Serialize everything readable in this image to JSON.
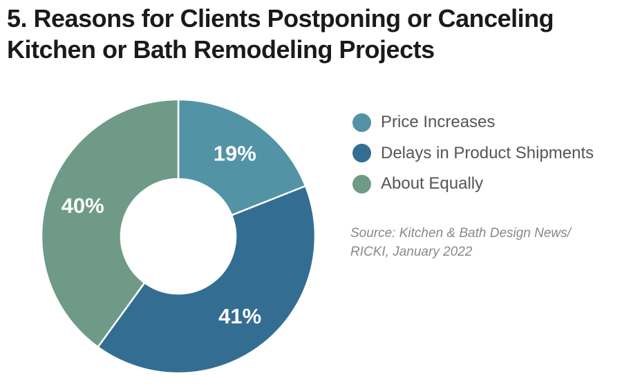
{
  "chart_data": {
    "type": "pie",
    "title_lines": [
      "5. Reasons for Clients Postponing or Canceling",
      "Kitchen or Bath Remodeling Projects"
    ],
    "categories": [
      "Price Increases",
      "Delays in Product Shipments",
      "About Equally"
    ],
    "values": [
      19,
      41,
      40
    ],
    "labels": [
      "19%",
      "41%",
      "40%"
    ],
    "colors": [
      "#5294a5",
      "#336e92",
      "#6e9a87"
    ],
    "donut": true,
    "legend_position": "right",
    "source_lines": [
      "Source: Kitchen & Bath Design News/",
      "RICKI, January 2022"
    ]
  }
}
